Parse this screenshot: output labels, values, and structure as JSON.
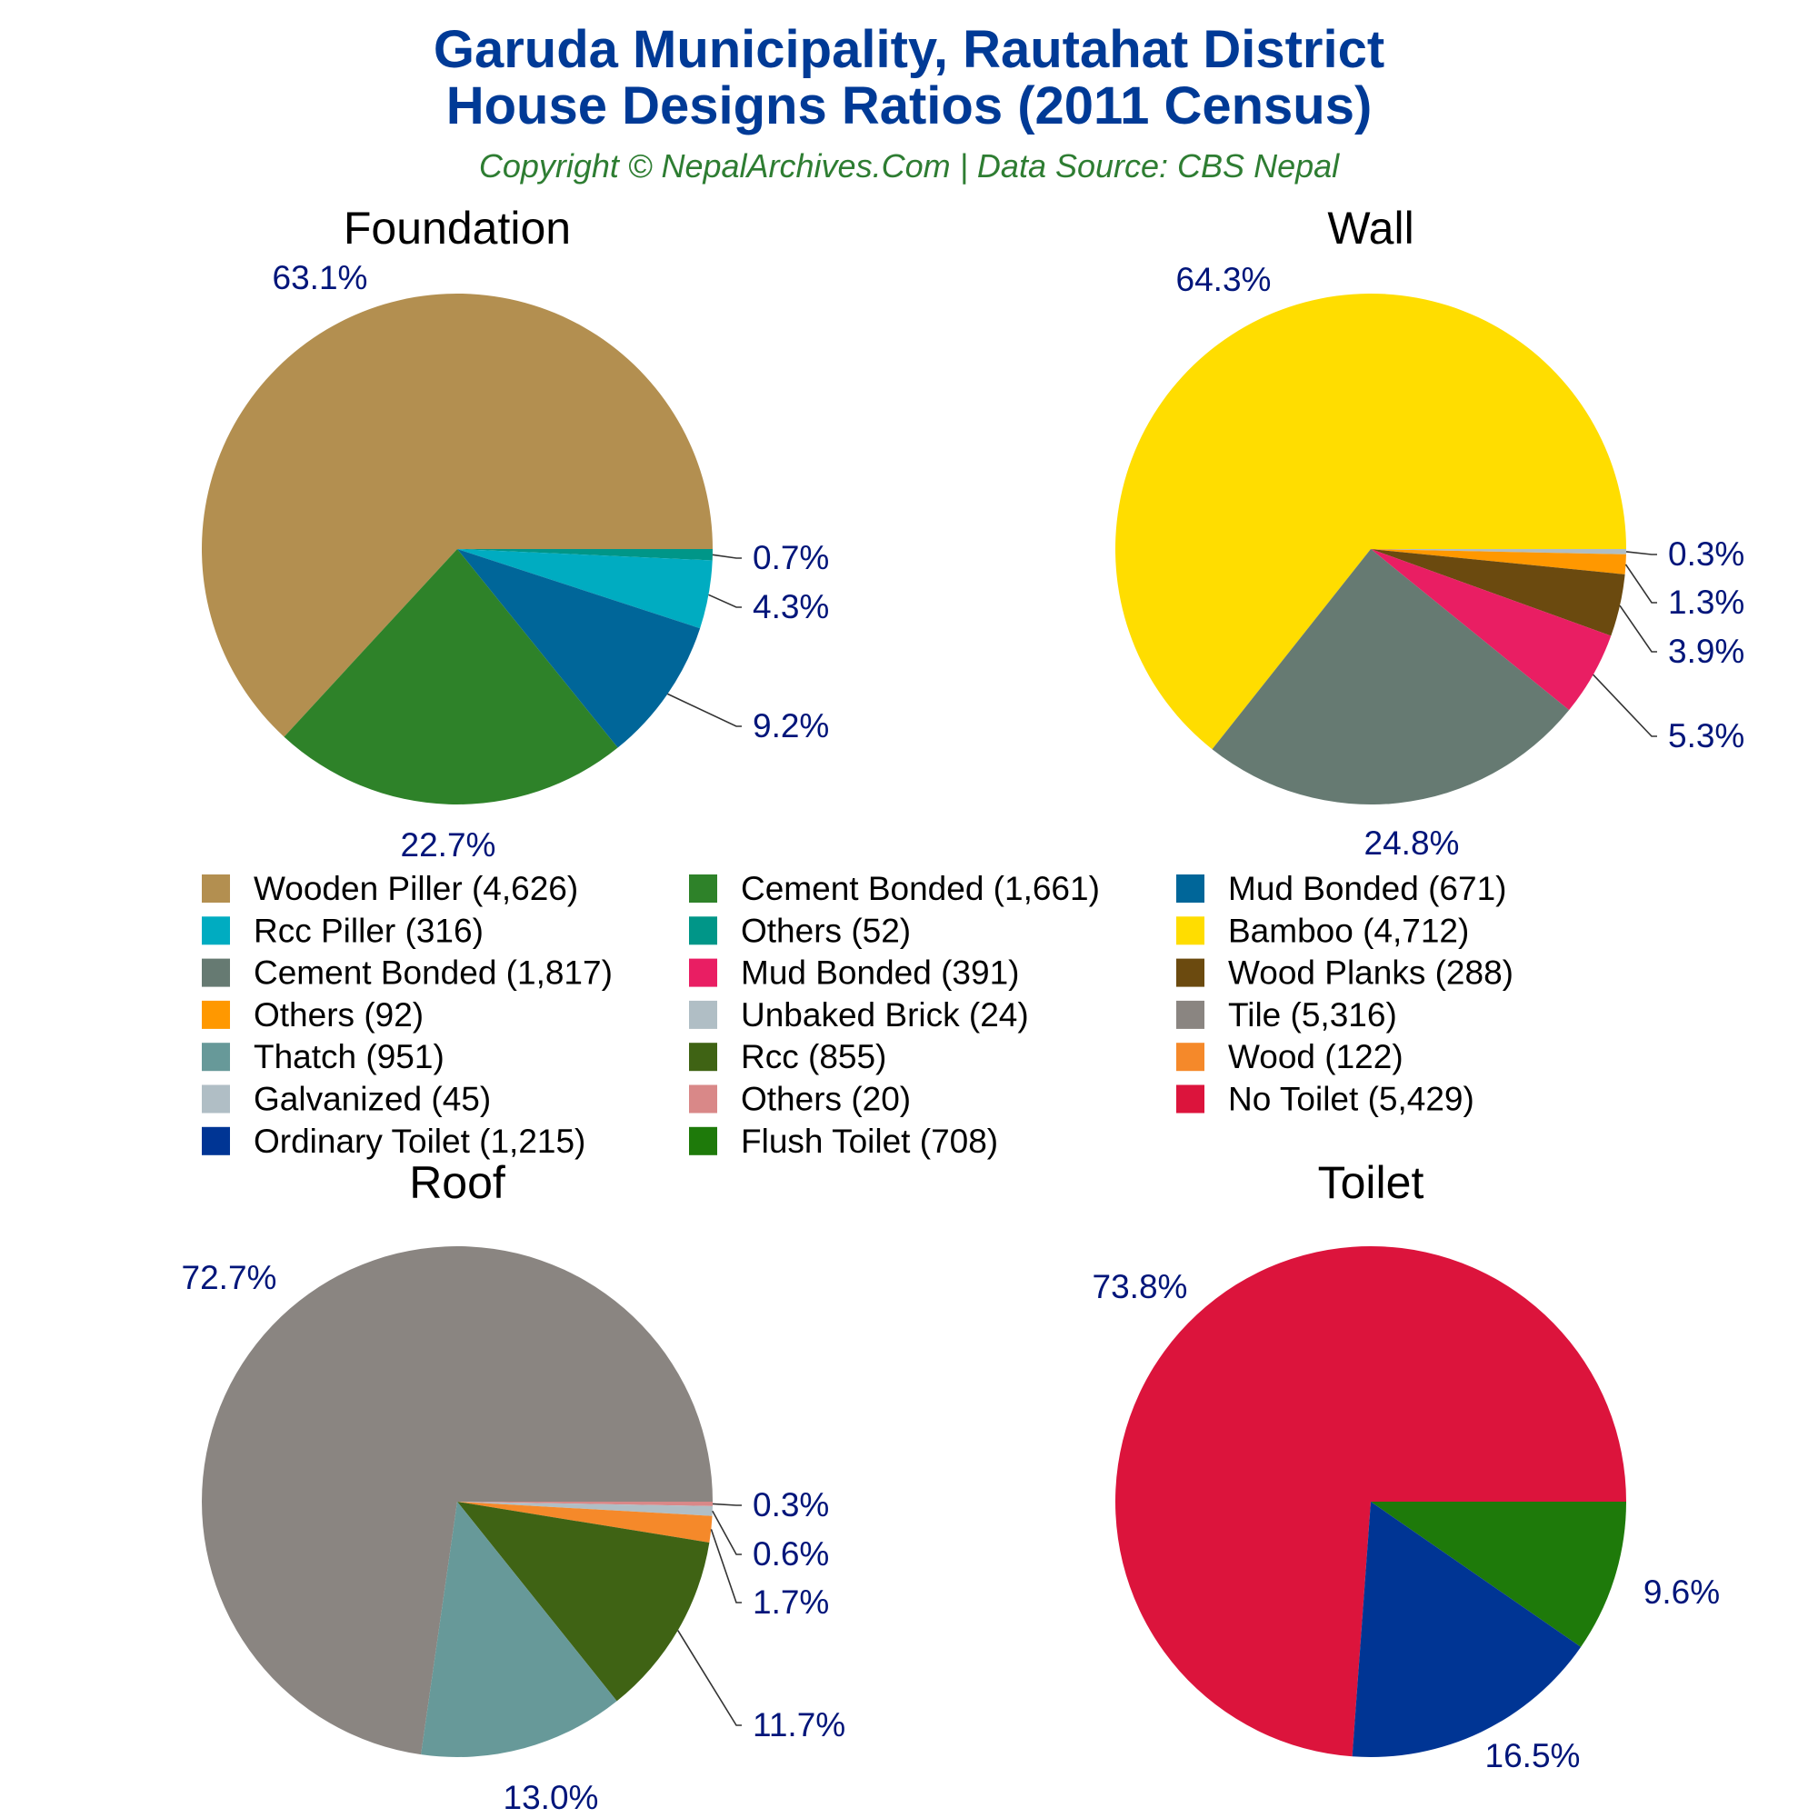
{
  "header": {
    "title_line1": "Garuda Municipality, Rautahat District",
    "title_line2": "House Designs Ratios (2011 Census)",
    "subtitle": "Copyright © NepalArchives.Com | Data Source: CBS Nepal"
  },
  "chart_data": [
    {
      "type": "pie",
      "title": "Foundation",
      "slices": [
        {
          "label": "Wooden Piller",
          "value": 4626,
          "pct": "63.1%",
          "color": "#b38f50"
        },
        {
          "label": "Others",
          "value": 52,
          "pct": "0.7%",
          "color": "#009688"
        },
        {
          "label": "Rcc Piller",
          "value": 316,
          "pct": "4.3%",
          "color": "#00acc1"
        },
        {
          "label": "Mud Bonded",
          "value": 671,
          "pct": "9.2%",
          "color": "#006699"
        },
        {
          "label": "Cement Bonded",
          "value": 1661,
          "pct": "22.7%",
          "color": "#2e8229"
        }
      ]
    },
    {
      "type": "pie",
      "title": "Wall",
      "slices": [
        {
          "label": "Bamboo",
          "value": 4712,
          "pct": "64.3%",
          "color": "#ffdd00"
        },
        {
          "label": "Unbaked Brick",
          "value": 24,
          "pct": "0.3%",
          "color": "#b0bec5"
        },
        {
          "label": "Others",
          "value": 92,
          "pct": "1.3%",
          "color": "#ff9800"
        },
        {
          "label": "Wood Planks",
          "value": 288,
          "pct": "3.9%",
          "color": "#6b4a0f"
        },
        {
          "label": "Mud Bonded",
          "value": 391,
          "pct": "5.3%",
          "color": "#e91e63"
        },
        {
          "label": "Cement Bonded",
          "value": 1817,
          "pct": "24.8%",
          "color": "#667a72"
        }
      ]
    },
    {
      "type": "pie",
      "title": "Roof",
      "slices": [
        {
          "label": "Tile",
          "value": 5316,
          "pct": "72.7%",
          "color": "#8a8581"
        },
        {
          "label": "Others",
          "value": 20,
          "pct": "0.3%",
          "color": "#d98888"
        },
        {
          "label": "Galvanized",
          "value": 45,
          "pct": "0.6%",
          "color": "#b0bec5"
        },
        {
          "label": "Wood",
          "value": 122,
          "pct": "1.7%",
          "color": "#f5892a"
        },
        {
          "label": "Rcc",
          "value": 855,
          "pct": "11.7%",
          "color": "#3f6314"
        },
        {
          "label": "Thatch",
          "value": 951,
          "pct": "13.0%",
          "color": "#679999"
        }
      ]
    },
    {
      "type": "pie",
      "title": "Toilet",
      "slices": [
        {
          "label": "No Toilet",
          "value": 5429,
          "pct": "73.8%",
          "color": "#dc143c"
        },
        {
          "label": "Flush Toilet",
          "value": 708,
          "pct": "9.6%",
          "color": "#1e7a0a"
        },
        {
          "label": "Ordinary Toilet",
          "value": 1215,
          "pct": "16.5%",
          "color": "#003594"
        }
      ]
    }
  ],
  "legend": [
    {
      "label": "Wooden Piller (4,626)",
      "color": "#b38f50"
    },
    {
      "label": "Cement Bonded (1,661)",
      "color": "#2e8229"
    },
    {
      "label": "Mud Bonded (671)",
      "color": "#006699"
    },
    {
      "label": "Rcc Piller (316)",
      "color": "#00acc1"
    },
    {
      "label": "Others (52)",
      "color": "#009688"
    },
    {
      "label": "Bamboo (4,712)",
      "color": "#ffdd00"
    },
    {
      "label": "Cement Bonded (1,817)",
      "color": "#667a72"
    },
    {
      "label": "Mud Bonded (391)",
      "color": "#e91e63"
    },
    {
      "label": "Wood Planks (288)",
      "color": "#6b4a0f"
    },
    {
      "label": "Others (92)",
      "color": "#ff9800"
    },
    {
      "label": "Unbaked Brick (24)",
      "color": "#b0bec5"
    },
    {
      "label": "Tile (5,316)",
      "color": "#8a8581"
    },
    {
      "label": "Thatch (951)",
      "color": "#679999"
    },
    {
      "label": "Rcc (855)",
      "color": "#3f6314"
    },
    {
      "label": "Wood (122)",
      "color": "#f5892a"
    },
    {
      "label": "Galvanized (45)",
      "color": "#b0bec5"
    },
    {
      "label": "Others (20)",
      "color": "#d98888"
    },
    {
      "label": "No Toilet (5,429)",
      "color": "#dc143c"
    },
    {
      "label": "Ordinary Toilet (1,215)",
      "color": "#003594"
    },
    {
      "label": "Flush Toilet (708)",
      "color": "#1e7a0a"
    }
  ]
}
